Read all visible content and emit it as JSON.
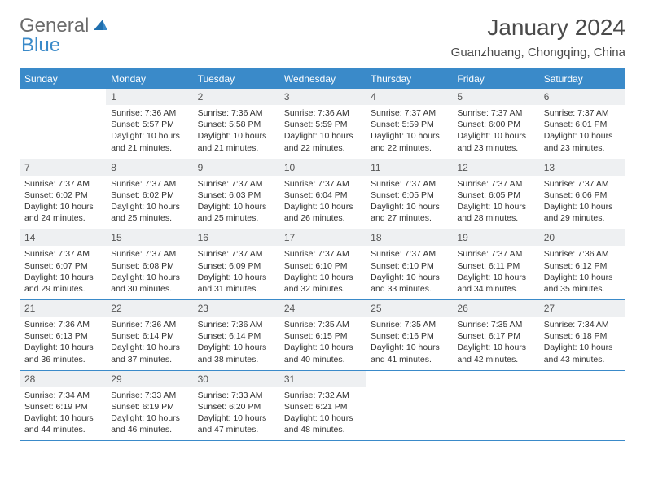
{
  "logo": {
    "part1": "General",
    "part2": "Blue"
  },
  "title": "January 2024",
  "location": "Guanzhuang, Chongqing, China",
  "colors": {
    "accent": "#3a8ac9",
    "logo_gray": "#6a6a6a",
    "daynum_bg": "#eef0f2",
    "text": "#333333",
    "title_gray": "#4a4a4a"
  },
  "dow": [
    "Sunday",
    "Monday",
    "Tuesday",
    "Wednesday",
    "Thursday",
    "Friday",
    "Saturday"
  ],
  "blank_lead": 1,
  "days": [
    {
      "n": "1",
      "sr": "7:36 AM",
      "ss": "5:57 PM",
      "dl": "10 hours and 21 minutes."
    },
    {
      "n": "2",
      "sr": "7:36 AM",
      "ss": "5:58 PM",
      "dl": "10 hours and 21 minutes."
    },
    {
      "n": "3",
      "sr": "7:36 AM",
      "ss": "5:59 PM",
      "dl": "10 hours and 22 minutes."
    },
    {
      "n": "4",
      "sr": "7:37 AM",
      "ss": "5:59 PM",
      "dl": "10 hours and 22 minutes."
    },
    {
      "n": "5",
      "sr": "7:37 AM",
      "ss": "6:00 PM",
      "dl": "10 hours and 23 minutes."
    },
    {
      "n": "6",
      "sr": "7:37 AM",
      "ss": "6:01 PM",
      "dl": "10 hours and 23 minutes."
    },
    {
      "n": "7",
      "sr": "7:37 AM",
      "ss": "6:02 PM",
      "dl": "10 hours and 24 minutes."
    },
    {
      "n": "8",
      "sr": "7:37 AM",
      "ss": "6:02 PM",
      "dl": "10 hours and 25 minutes."
    },
    {
      "n": "9",
      "sr": "7:37 AM",
      "ss": "6:03 PM",
      "dl": "10 hours and 25 minutes."
    },
    {
      "n": "10",
      "sr": "7:37 AM",
      "ss": "6:04 PM",
      "dl": "10 hours and 26 minutes."
    },
    {
      "n": "11",
      "sr": "7:37 AM",
      "ss": "6:05 PM",
      "dl": "10 hours and 27 minutes."
    },
    {
      "n": "12",
      "sr": "7:37 AM",
      "ss": "6:05 PM",
      "dl": "10 hours and 28 minutes."
    },
    {
      "n": "13",
      "sr": "7:37 AM",
      "ss": "6:06 PM",
      "dl": "10 hours and 29 minutes."
    },
    {
      "n": "14",
      "sr": "7:37 AM",
      "ss": "6:07 PM",
      "dl": "10 hours and 29 minutes."
    },
    {
      "n": "15",
      "sr": "7:37 AM",
      "ss": "6:08 PM",
      "dl": "10 hours and 30 minutes."
    },
    {
      "n": "16",
      "sr": "7:37 AM",
      "ss": "6:09 PM",
      "dl": "10 hours and 31 minutes."
    },
    {
      "n": "17",
      "sr": "7:37 AM",
      "ss": "6:10 PM",
      "dl": "10 hours and 32 minutes."
    },
    {
      "n": "18",
      "sr": "7:37 AM",
      "ss": "6:10 PM",
      "dl": "10 hours and 33 minutes."
    },
    {
      "n": "19",
      "sr": "7:37 AM",
      "ss": "6:11 PM",
      "dl": "10 hours and 34 minutes."
    },
    {
      "n": "20",
      "sr": "7:36 AM",
      "ss": "6:12 PM",
      "dl": "10 hours and 35 minutes."
    },
    {
      "n": "21",
      "sr": "7:36 AM",
      "ss": "6:13 PM",
      "dl": "10 hours and 36 minutes."
    },
    {
      "n": "22",
      "sr": "7:36 AM",
      "ss": "6:14 PM",
      "dl": "10 hours and 37 minutes."
    },
    {
      "n": "23",
      "sr": "7:36 AM",
      "ss": "6:14 PM",
      "dl": "10 hours and 38 minutes."
    },
    {
      "n": "24",
      "sr": "7:35 AM",
      "ss": "6:15 PM",
      "dl": "10 hours and 40 minutes."
    },
    {
      "n": "25",
      "sr": "7:35 AM",
      "ss": "6:16 PM",
      "dl": "10 hours and 41 minutes."
    },
    {
      "n": "26",
      "sr": "7:35 AM",
      "ss": "6:17 PM",
      "dl": "10 hours and 42 minutes."
    },
    {
      "n": "27",
      "sr": "7:34 AM",
      "ss": "6:18 PM",
      "dl": "10 hours and 43 minutes."
    },
    {
      "n": "28",
      "sr": "7:34 AM",
      "ss": "6:19 PM",
      "dl": "10 hours and 44 minutes."
    },
    {
      "n": "29",
      "sr": "7:33 AM",
      "ss": "6:19 PM",
      "dl": "10 hours and 46 minutes."
    },
    {
      "n": "30",
      "sr": "7:33 AM",
      "ss": "6:20 PM",
      "dl": "10 hours and 47 minutes."
    },
    {
      "n": "31",
      "sr": "7:32 AM",
      "ss": "6:21 PM",
      "dl": "10 hours and 48 minutes."
    }
  ],
  "labels": {
    "sunrise": "Sunrise: ",
    "sunset": "Sunset: ",
    "daylight": "Daylight: "
  }
}
